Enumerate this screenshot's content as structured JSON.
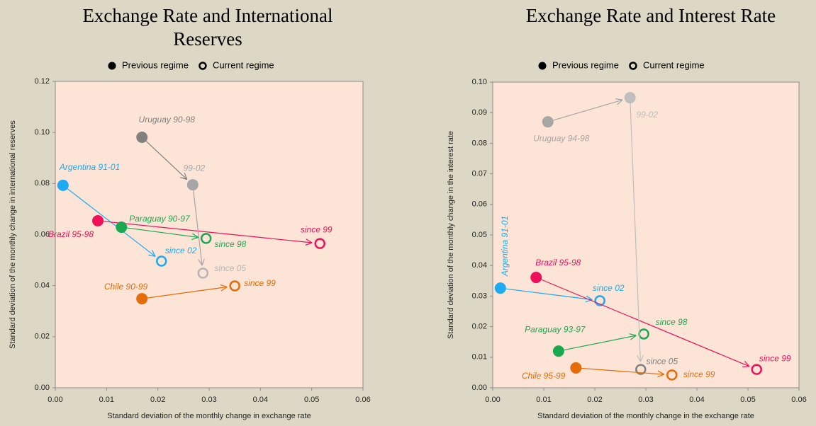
{
  "chart_data": [
    {
      "type": "scatter",
      "title": "Exchange Rate and International Reserves",
      "x_label": "Standard deviation of the monthly change in exchange rate",
      "y_label": "Standard deviation of the monthly change in international reserves",
      "legend": [
        {
          "name": "Previous regime",
          "filled": true
        },
        {
          "name": "Current regime",
          "filled": false
        }
      ],
      "xlim": [
        0,
        0.06
      ],
      "ylim": [
        0,
        0.12
      ],
      "xticks": [
        {
          "value": 0,
          "label": "0.00"
        },
        {
          "value": 0.01,
          "label": "0.01"
        },
        {
          "value": 0.02,
          "label": "0.02"
        },
        {
          "value": 0.03,
          "label": "0.03"
        },
        {
          "value": 0.04,
          "label": "0.04"
        },
        {
          "value": 0.05,
          "label": "0.05"
        },
        {
          "value": 0.06,
          "label": "0.06"
        }
      ],
      "yticks": [
        {
          "value": 0,
          "label": "0.00"
        },
        {
          "value": 0.02,
          "label": "0.02"
        },
        {
          "value": 0.04,
          "label": "0.04"
        },
        {
          "value": 0.06,
          "label": "0.06"
        },
        {
          "value": 0.08,
          "label": "0.08"
        },
        {
          "value": 0.1,
          "label": "0.10"
        },
        {
          "value": 0.12,
          "label": "0.12"
        }
      ],
      "groups": [
        {
          "labels": [
            "Argentina 91-01",
            "since 02"
          ],
          "x": [
            0.0015,
            0.0207
          ],
          "y": [
            0.0793,
            0.0496
          ],
          "filled": [
            true,
            false
          ],
          "colors": [
            "#1eaaf1",
            "#1eaaf1"
          ]
        },
        {
          "labels": [
            "Brazil 95-98",
            "since 99"
          ],
          "x": [
            0.0083,
            0.0516
          ],
          "y": [
            0.0654,
            0.0565
          ],
          "filled": [
            true,
            false
          ],
          "colors": [
            "#f0105a",
            "#f0105a"
          ]
        },
        {
          "labels": [
            "Paraguay 90-97",
            "since 98"
          ],
          "x": [
            0.0129,
            0.0294
          ],
          "y": [
            0.0629,
            0.0585
          ],
          "filled": [
            true,
            false
          ],
          "colors": [
            "#1aa851",
            "#1aa851"
          ]
        },
        {
          "labels": [
            "Uruguay 90-98",
            "99-02",
            "since 05"
          ],
          "x": [
            0.0169,
            0.0268,
            0.0288
          ],
          "y": [
            0.0981,
            0.0795,
            0.0449
          ],
          "filled": [
            true,
            true,
            false
          ],
          "colors": [
            "#808080",
            "#a6a6a6",
            "#b5b5b5"
          ]
        },
        {
          "labels": [
            "Chile 90-99",
            "since 99"
          ],
          "x": [
            0.0169,
            0.035
          ],
          "y": [
            0.0349,
            0.0399
          ],
          "filled": [
            true,
            false
          ],
          "colors": [
            "#e46c0a",
            "#e46c0a"
          ]
        }
      ]
    },
    {
      "type": "scatter",
      "title": "Exchange Rate and Interest Rate",
      "x_label": "Standard deviation of the monthly change in the exchange rate",
      "y_label": "Standard deviation of the monthly change in the  interest  rate",
      "legend": [
        {
          "name": "Previous regime",
          "filled": true
        },
        {
          "name": "Current regime",
          "filled": false
        }
      ],
      "xlim": [
        0,
        0.06
      ],
      "ylim": [
        0,
        0.1
      ],
      "xticks": [
        {
          "value": 0,
          "label": "0.00"
        },
        {
          "value": 0.01,
          "label": "0.01"
        },
        {
          "value": 0.02,
          "label": "0.02"
        },
        {
          "value": 0.03,
          "label": "0.03"
        },
        {
          "value": 0.04,
          "label": "0.04"
        },
        {
          "value": 0.05,
          "label": "0.05"
        },
        {
          "value": 0.06,
          "label": "0.06"
        }
      ],
      "yticks": [
        {
          "value": 0,
          "label": "0.00"
        },
        {
          "value": 0.01,
          "label": "0.01"
        },
        {
          "value": 0.02,
          "label": "0.02"
        },
        {
          "value": 0.03,
          "label": "0.03"
        },
        {
          "value": 0.04,
          "label": "0.04"
        },
        {
          "value": 0.05,
          "label": "0.05"
        },
        {
          "value": 0.06,
          "label": "0.06"
        },
        {
          "value": 0.07,
          "label": "0.07"
        },
        {
          "value": 0.08,
          "label": "0.08"
        },
        {
          "value": 0.09,
          "label": "0.09"
        },
        {
          "value": 0.1,
          "label": "0.10"
        }
      ],
      "groups": [
        {
          "labels": [
            "Argentina 91-01",
            "since 02"
          ],
          "x": [
            0.0015,
            0.021
          ],
          "y": [
            0.0326,
            0.0285
          ],
          "filled": [
            true,
            false
          ],
          "colors": [
            "#1eaaf1",
            "#1eaaf1"
          ]
        },
        {
          "labels": [
            "Brazil 95-98",
            "since 99"
          ],
          "x": [
            0.0085,
            0.0517
          ],
          "y": [
            0.0361,
            0.006
          ],
          "filled": [
            true,
            false
          ],
          "colors": [
            "#f0105a",
            "#f0105a"
          ]
        },
        {
          "labels": [
            "Paraguay 93-97",
            "since 98"
          ],
          "x": [
            0.0129,
            0.0296
          ],
          "y": [
            0.012,
            0.0176
          ],
          "filled": [
            true,
            false
          ],
          "colors": [
            "#1aa851",
            "#1aa851"
          ]
        },
        {
          "labels": [
            "Uruguay 94-98",
            "99-02",
            "since 05"
          ],
          "x": [
            0.0108,
            0.0269,
            0.029
          ],
          "y": [
            0.087,
            0.0949,
            0.006
          ],
          "filled": [
            true,
            true,
            false
          ],
          "colors": [
            "#a6a6a6",
            "#bfbfbf",
            "#808080"
          ]
        },
        {
          "labels": [
            "Chile 95-99",
            "since 99"
          ],
          "x": [
            0.0163,
            0.0351
          ],
          "y": [
            0.0065,
            0.0042
          ],
          "filled": [
            true,
            false
          ],
          "colors": [
            "#e46c0a",
            "#e46c0a"
          ]
        }
      ]
    }
  ]
}
